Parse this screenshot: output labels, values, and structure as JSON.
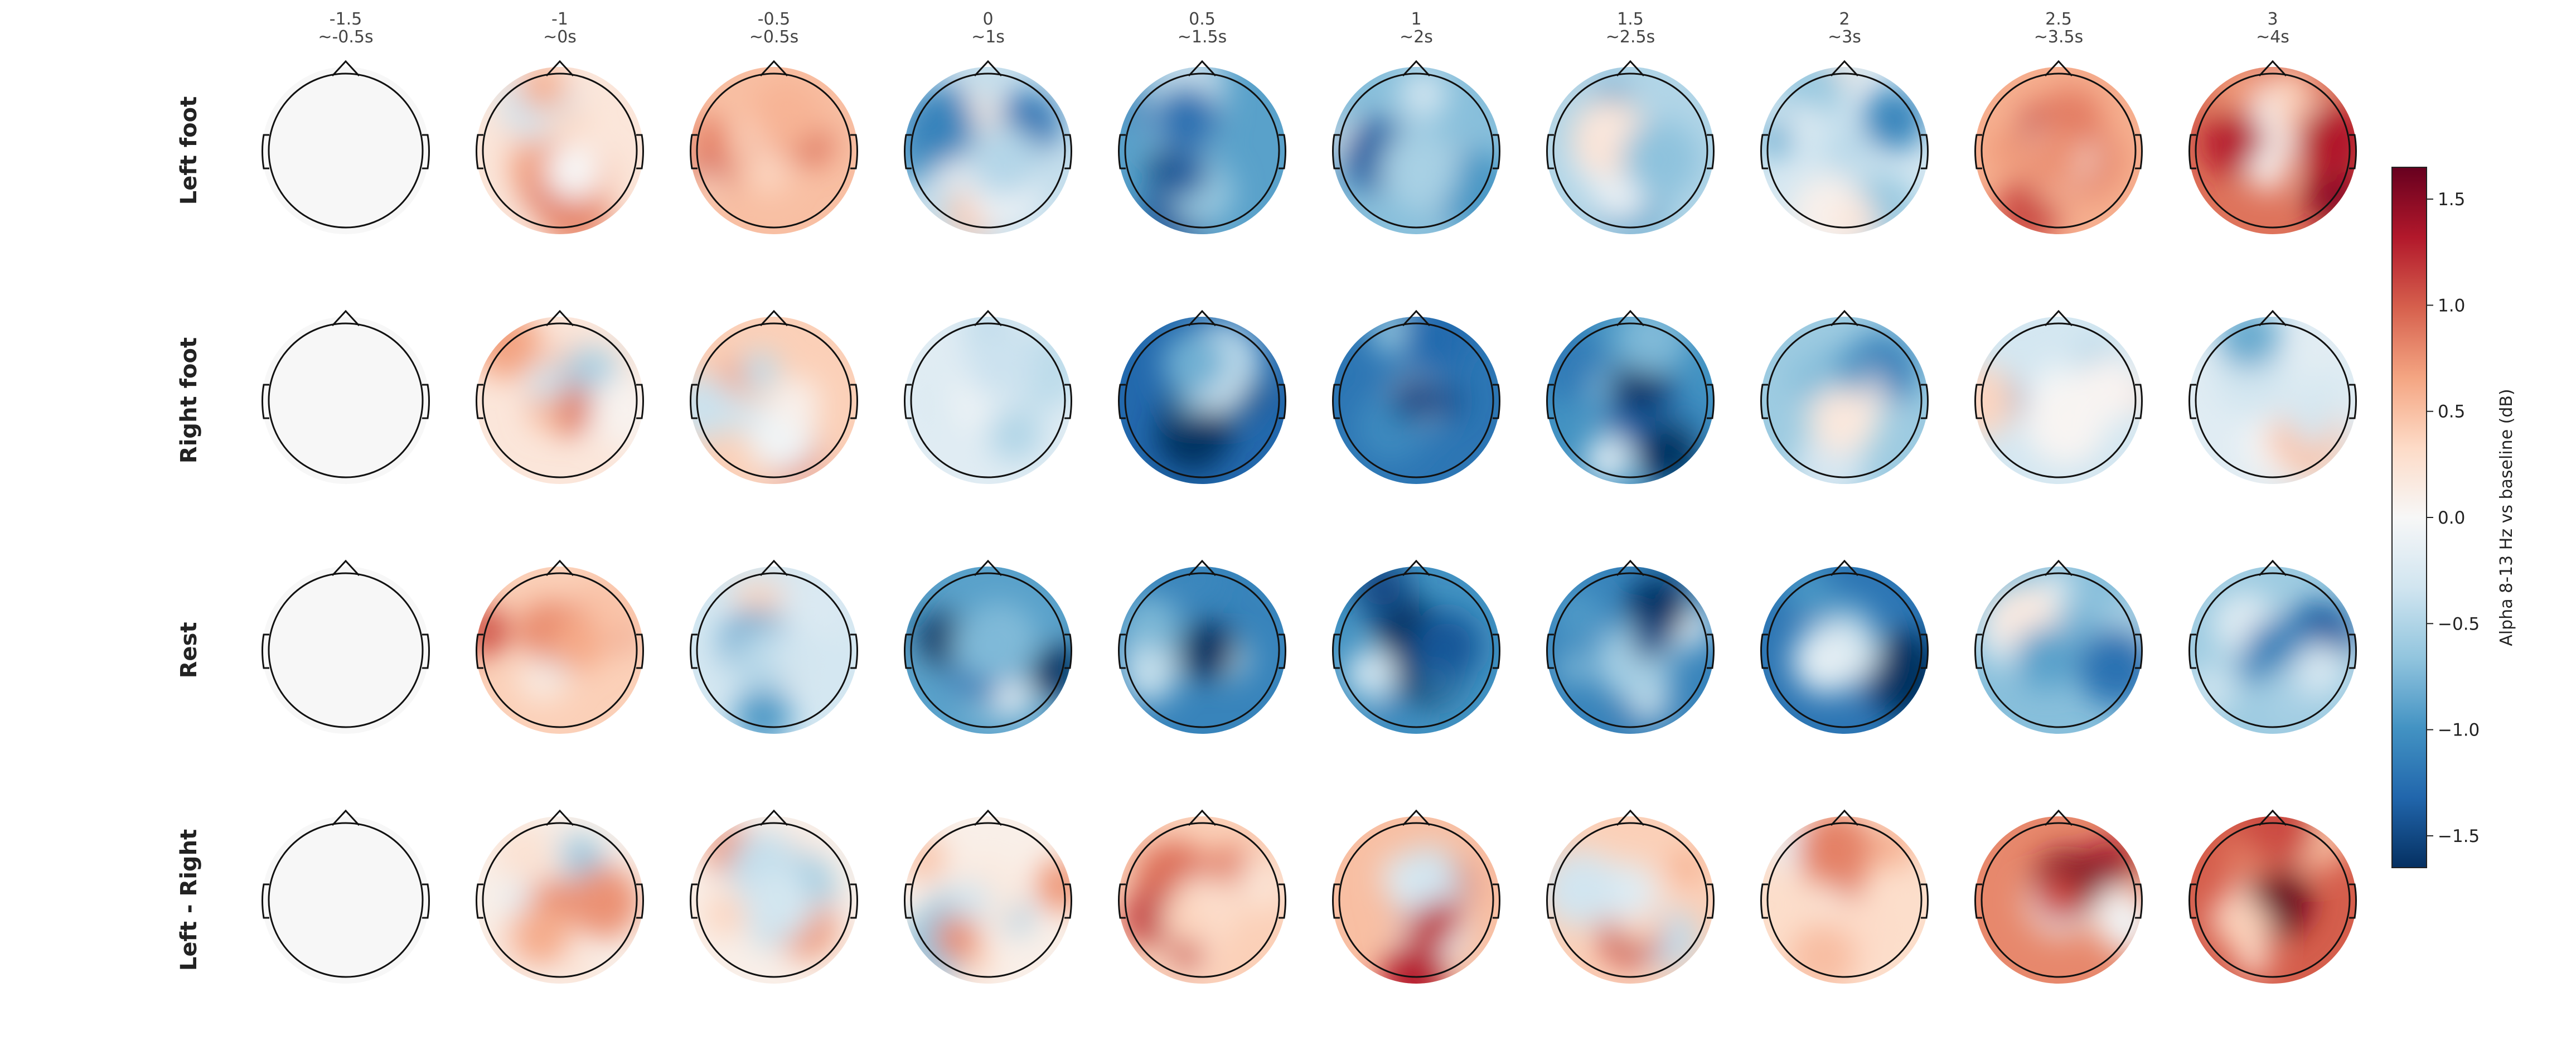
{
  "chart_data": {
    "type": "heatmap",
    "columns": [
      {
        "t": "-1.5",
        "win": "~-0.5s"
      },
      {
        "t": "-1",
        "win": "~0s"
      },
      {
        "t": "-0.5",
        "win": "~0.5s"
      },
      {
        "t": "0",
        "win": "~1s"
      },
      {
        "t": "0.5",
        "win": "~1.5s"
      },
      {
        "t": "1",
        "win": "~2s"
      },
      {
        "t": "1.5",
        "win": "~2.5s"
      },
      {
        "t": "2",
        "win": "~3s"
      },
      {
        "t": "2.5",
        "win": "~3.5s"
      },
      {
        "t": "3",
        "win": "~4s"
      }
    ],
    "rows": [
      "Left foot",
      "Right foot",
      "Rest",
      "Left - Right"
    ],
    "mean_values": [
      [
        0.0,
        0.2,
        0.5,
        -0.4,
        -0.9,
        -0.7,
        -0.5,
        -0.3,
        0.6,
        0.9
      ],
      [
        0.0,
        0.2,
        0.4,
        -0.2,
        -1.3,
        -1.2,
        -1.0,
        -0.6,
        -0.3,
        -0.2
      ],
      [
        0.0,
        0.4,
        -0.3,
        -0.9,
        -1.1,
        -1.0,
        -1.1,
        -1.2,
        -0.7,
        -0.6
      ],
      [
        0.0,
        0.1,
        0.1,
        0.1,
        0.4,
        0.5,
        0.4,
        0.3,
        0.8,
        1.0
      ]
    ],
    "colorbar": {
      "label": "Alpha 8-13 Hz vs baseline (dB)",
      "range": [
        -1.65,
        1.65
      ],
      "ticks": [
        1.5,
        1.0,
        0.5,
        0.0,
        -0.5,
        -1.0,
        -1.5
      ],
      "tick_labels": [
        "1.5",
        "1.0",
        "0.5",
        "0.0",
        "−0.5",
        "−1.0",
        "−1.5"
      ],
      "colormap": "RdBu_r"
    }
  }
}
